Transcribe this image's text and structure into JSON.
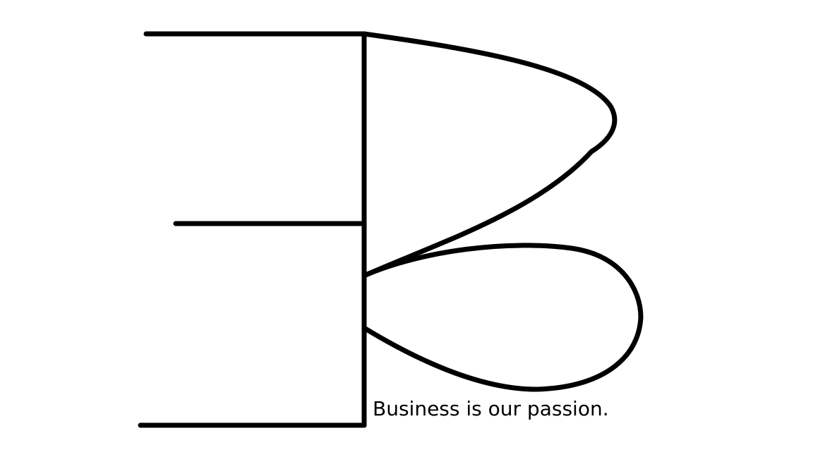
{
  "logo": {
    "tagline": "Business is our passion.",
    "stroke_color": "#000000",
    "background_color": "#ffffff",
    "icon_name": "eb-monogram-icon"
  }
}
